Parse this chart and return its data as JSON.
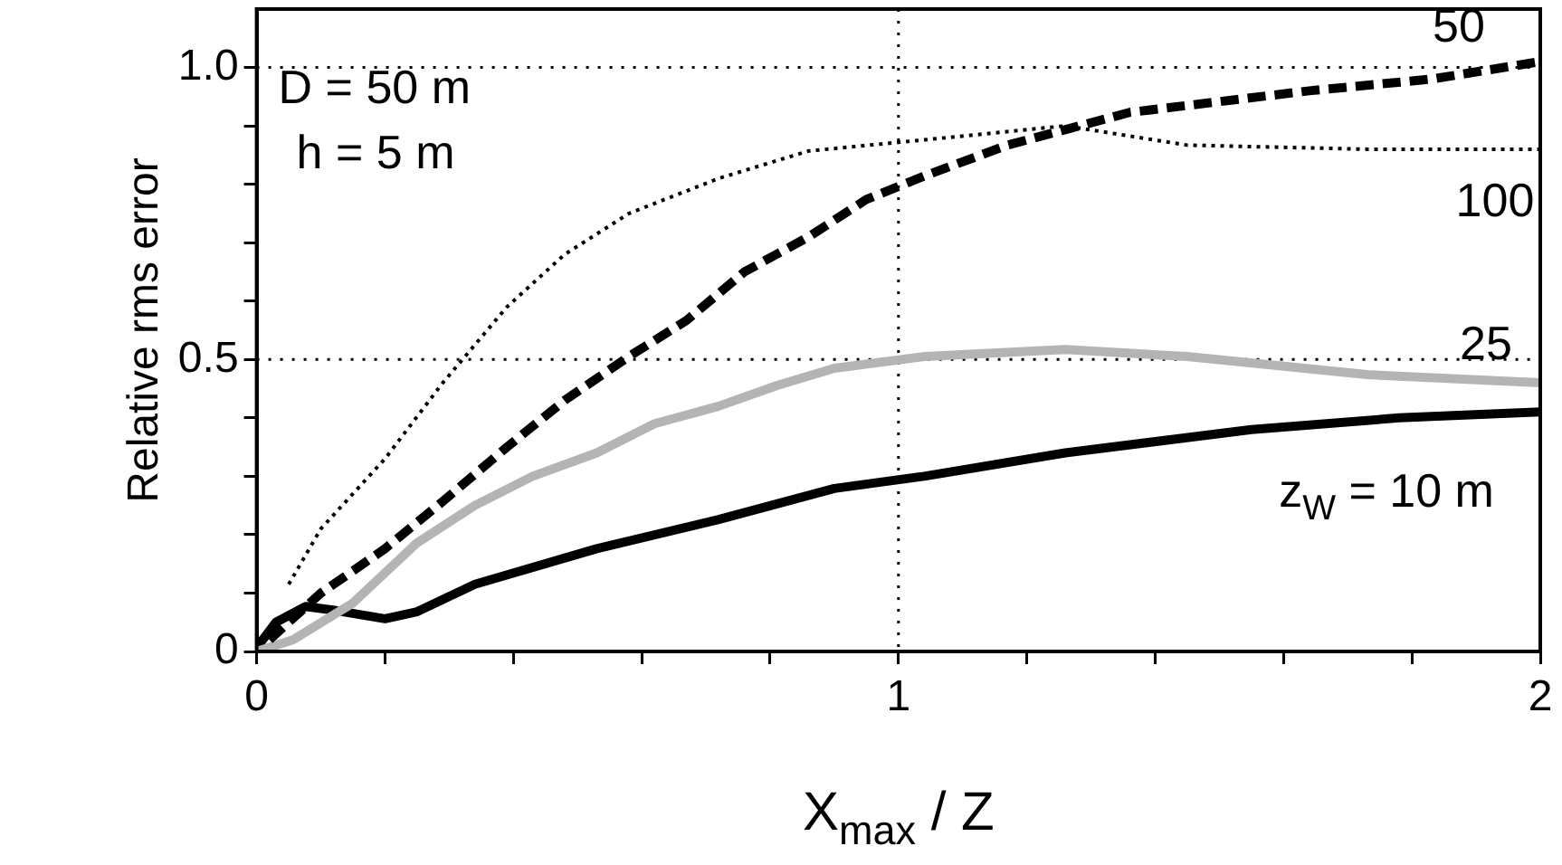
{
  "chart_data": {
    "type": "line",
    "xlabel": "X$_{max}$ / Z",
    "ylabel": "Relative rms error",
    "xlim": [
      0,
      2
    ],
    "ylim": [
      0,
      1.1
    ],
    "xticks": [
      0,
      {
        "value": 0.2,
        "label": null
      },
      {
        "value": 0.4,
        "label": null
      },
      {
        "value": 0.6,
        "label": null
      },
      {
        "value": 0.8,
        "label": null
      },
      1,
      {
        "value": 1.2,
        "label": null
      },
      {
        "value": 1.4,
        "label": null
      },
      {
        "value": 1.6,
        "label": null
      },
      {
        "value": 1.8,
        "label": null
      },
      2
    ],
    "yticks": [
      0,
      {
        "value": 0.1,
        "label": null
      },
      {
        "value": 0.2,
        "label": null
      },
      {
        "value": 0.3,
        "label": null
      },
      {
        "value": 0.4,
        "label": null
      },
      0.5,
      {
        "value": 0.6,
        "label": null
      },
      {
        "value": 0.7,
        "label": null
      },
      {
        "value": 0.8,
        "label": null
      },
      {
        "value": 0.9,
        "label": null
      },
      {
        "value": 1,
        "label": "1.0"
      }
    ],
    "grid": true,
    "legend": false,
    "marker": "none",
    "series": [
      {
        "name": "z$_{W}$ = 10 m",
        "color": "#000000",
        "line_style": "solid",
        "x": [
          0,
          0.03,
          0.076,
          0.124,
          0.2,
          0.25,
          0.34,
          0.53,
          0.72,
          0.9,
          1.04,
          1.26,
          1.55,
          1.78,
          2.0
        ],
        "values": [
          0.006,
          0.05,
          0.077,
          0.07,
          0.056,
          0.068,
          0.115,
          0.176,
          0.226,
          0.279,
          0.3,
          0.34,
          0.38,
          0.4,
          0.41
        ]
      },
      {
        "name": "25",
        "color": "#b4b4b4",
        "line_style": "solid",
        "x": [
          0,
          0.057,
          0.15,
          0.25,
          0.34,
          0.43,
          0.53,
          0.62,
          0.72,
          0.81,
          0.9,
          1.04,
          1.26,
          1.45,
          1.73,
          2.0
        ],
        "values": [
          0,
          0.02,
          0.083,
          0.186,
          0.25,
          0.3,
          0.34,
          0.39,
          0.42,
          0.455,
          0.485,
          0.505,
          0.517,
          0.505,
          0.474,
          0.46
        ]
      },
      {
        "name": "50",
        "color": "#000000",
        "line_style": "dashed",
        "x": [
          0.02,
          0.1,
          0.2,
          0.29,
          0.39,
          0.48,
          0.58,
          0.67,
          0.76,
          0.86,
          0.95,
          1.04,
          1.17,
          1.36,
          1.64,
          1.83,
          2.0
        ],
        "values": [
          0.02,
          0.1,
          0.176,
          0.257,
          0.35,
          0.43,
          0.505,
          0.567,
          0.65,
          0.71,
          0.774,
          0.814,
          0.867,
          0.923,
          0.96,
          0.98,
          1.01
        ]
      },
      {
        "name": "100",
        "color": "#000000",
        "line_style": "dotted",
        "x": [
          0.05,
          0.1,
          0.2,
          0.29,
          0.39,
          0.48,
          0.58,
          0.72,
          0.86,
          1.04,
          1.26,
          1.45,
          1.73,
          2.0
        ],
        "values": [
          0.115,
          0.21,
          0.33,
          0.46,
          0.59,
          0.68,
          0.75,
          0.81,
          0.857,
          0.876,
          0.9,
          0.867,
          0.86,
          0.86
        ]
      }
    ],
    "annotations": [
      "D = 50 m",
      "h = 5 m"
    ]
  }
}
